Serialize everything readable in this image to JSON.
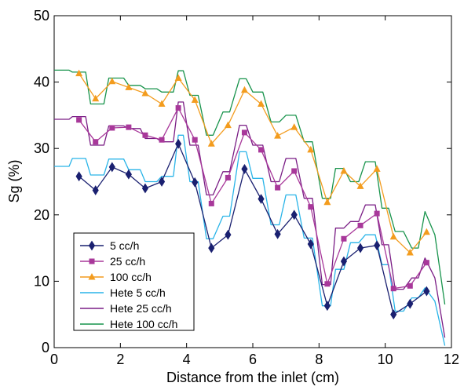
{
  "chart_data": {
    "type": "line",
    "xlabel": "Distance from the inlet (cm)",
    "ylabel": "Sg (%)",
    "xlim": [
      0,
      12
    ],
    "ylim": [
      0,
      50
    ],
    "xticks": [
      0,
      2,
      4,
      6,
      8,
      10,
      12
    ],
    "yticks": [
      0,
      10,
      20,
      30,
      40,
      50
    ],
    "legend_position": "bottom-left",
    "series": [
      {
        "name": "5 cc/h",
        "color": "#1a2070",
        "marker": "diamond",
        "x": [
          0.75,
          1.25,
          1.75,
          2.25,
          2.75,
          3.25,
          3.75,
          4.25,
          4.75,
          5.25,
          5.75,
          6.25,
          6.75,
          7.25,
          7.75,
          8.25,
          8.75,
          9.25,
          9.75,
          10.25,
          10.75,
          11.25
        ],
        "y": [
          25.8,
          23.7,
          27.2,
          26.1,
          24.0,
          25.0,
          30.7,
          24.9,
          15.0,
          17.0,
          26.9,
          22.4,
          17.1,
          20.0,
          15.6,
          6.3,
          13.0,
          15.0,
          15.4,
          5.0,
          6.6,
          8.5
        ]
      },
      {
        "name": "25 cc/h",
        "color": "#a8389a",
        "marker": "square",
        "x": [
          0.75,
          1.25,
          1.75,
          2.25,
          2.75,
          3.25,
          3.75,
          4.25,
          4.75,
          5.25,
          5.75,
          6.25,
          6.75,
          7.25,
          7.75,
          8.25,
          8.75,
          9.25,
          9.75,
          10.25,
          10.75,
          11.25
        ],
        "y": [
          34.3,
          31.0,
          33.1,
          33.2,
          32.0,
          31.3,
          36.1,
          31.3,
          21.7,
          25.6,
          32.4,
          29.8,
          24.1,
          26.6,
          21.2,
          9.6,
          16.4,
          18.4,
          20.2,
          8.9,
          9.3,
          12.8
        ]
      },
      {
        "name": "100 cc/h",
        "color": "#f39c1e",
        "marker": "triangle",
        "x": [
          0.75,
          1.25,
          1.75,
          2.25,
          2.75,
          3.25,
          3.75,
          4.25,
          4.75,
          5.25,
          5.75,
          6.25,
          6.75,
          7.25,
          7.75,
          8.25,
          8.75,
          9.25,
          9.75,
          10.25,
          10.75,
          11.25
        ],
        "y": [
          41.3,
          37.5,
          40.1,
          39.2,
          38.3,
          36.7,
          40.6,
          37.3,
          30.7,
          33.5,
          38.8,
          36.7,
          31.9,
          33.2,
          29.8,
          21.9,
          26.6,
          24.3,
          26.9,
          16.7,
          14.3,
          17.4
        ]
      },
      {
        "name": "Hete 5 cc/h",
        "color": "#29b4e8",
        "marker": "none",
        "x": [
          0.0,
          0.45,
          0.55,
          0.95,
          1.1,
          1.5,
          1.65,
          2.1,
          2.25,
          2.6,
          2.75,
          3.1,
          3.25,
          3.6,
          3.75,
          3.9,
          4.1,
          4.35,
          4.6,
          4.8,
          5.1,
          5.3,
          5.6,
          5.8,
          6.0,
          6.3,
          6.55,
          6.8,
          7.0,
          7.3,
          7.55,
          7.8,
          8.1,
          8.35,
          8.5,
          8.75,
          8.95,
          9.2,
          9.4,
          9.7,
          9.9,
          10.1,
          10.3,
          10.55,
          10.8,
          11.0,
          11.2,
          11.5,
          11.8
        ],
        "y": [
          27.3,
          27.3,
          28.5,
          28.5,
          26.0,
          26.0,
          28.4,
          28.4,
          26.8,
          26.8,
          25.0,
          25.0,
          25.8,
          25.8,
          32.0,
          32.0,
          25.0,
          25.0,
          16.4,
          16.4,
          19.8,
          19.8,
          29.5,
          29.5,
          25.5,
          25.5,
          18.5,
          18.5,
          23.0,
          23.0,
          16.5,
          16.5,
          6.3,
          6.3,
          11.8,
          11.8,
          15.8,
          15.8,
          17.0,
          17.0,
          12.5,
          12.5,
          5.5,
          5.5,
          7.5,
          7.5,
          9.0,
          7.0,
          0.3
        ]
      },
      {
        "name": "Hete 25 cc/h",
        "color": "#7a1d85",
        "marker": "none",
        "x": [
          0.0,
          0.45,
          0.55,
          0.95,
          1.1,
          1.5,
          1.65,
          2.1,
          2.25,
          2.6,
          2.75,
          3.1,
          3.25,
          3.6,
          3.75,
          3.9,
          4.1,
          4.35,
          4.6,
          4.8,
          5.1,
          5.3,
          5.6,
          5.8,
          6.0,
          6.3,
          6.55,
          6.8,
          7.0,
          7.3,
          7.55,
          7.8,
          8.1,
          8.35,
          8.5,
          8.75,
          8.95,
          9.2,
          9.4,
          9.7,
          9.9,
          10.1,
          10.3,
          10.55,
          10.8,
          11.0,
          11.2,
          11.5,
          11.8
        ],
        "y": [
          34.4,
          34.4,
          34.8,
          34.8,
          30.5,
          30.5,
          33.4,
          33.4,
          33.0,
          33.0,
          31.5,
          31.5,
          31.0,
          31.0,
          37.0,
          37.0,
          30.5,
          30.5,
          23.0,
          23.0,
          26.5,
          26.5,
          33.5,
          33.5,
          30.5,
          30.5,
          25.0,
          25.0,
          28.5,
          28.5,
          22.5,
          22.5,
          9.5,
          9.5,
          18.0,
          18.0,
          19.0,
          19.0,
          21.5,
          21.5,
          15.5,
          15.5,
          8.8,
          8.8,
          10.5,
          10.5,
          13.5,
          10.5,
          1.5
        ]
      },
      {
        "name": "Hete 100 cc/h",
        "color": "#17934b",
        "marker": "none",
        "x": [
          0.0,
          0.45,
          0.55,
          0.95,
          1.1,
          1.5,
          1.65,
          2.1,
          2.25,
          2.6,
          2.75,
          3.1,
          3.25,
          3.6,
          3.75,
          3.9,
          4.1,
          4.35,
          4.6,
          4.8,
          5.1,
          5.3,
          5.6,
          5.8,
          6.0,
          6.3,
          6.55,
          6.8,
          7.0,
          7.3,
          7.55,
          7.8,
          8.1,
          8.35,
          8.5,
          8.75,
          8.95,
          9.2,
          9.4,
          9.7,
          9.9,
          10.1,
          10.3,
          10.55,
          10.8,
          11.0,
          11.2,
          11.5,
          11.8
        ],
        "y": [
          41.8,
          41.8,
          41.5,
          41.5,
          36.7,
          36.7,
          40.6,
          40.6,
          39.5,
          39.5,
          39.0,
          39.0,
          38.5,
          38.5,
          41.7,
          41.7,
          38.0,
          38.0,
          32.0,
          32.0,
          35.5,
          35.5,
          40.5,
          40.5,
          38.5,
          38.5,
          34.0,
          34.0,
          35.0,
          35.0,
          31.0,
          31.0,
          22.5,
          22.5,
          27.0,
          27.0,
          25.0,
          25.0,
          28.0,
          28.0,
          21.0,
          21.0,
          17.5,
          17.5,
          15.0,
          15.0,
          20.5,
          17.0,
          6.5
        ]
      }
    ]
  }
}
